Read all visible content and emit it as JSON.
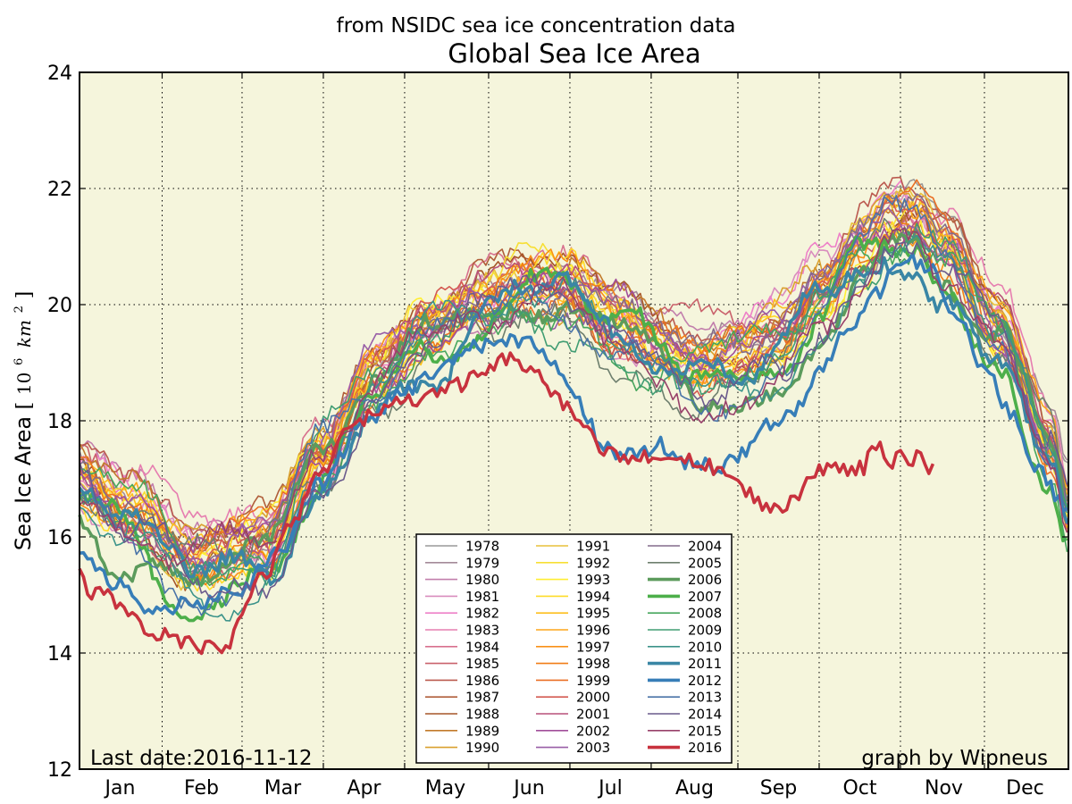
{
  "chart_data": {
    "type": "line",
    "subtitle": "from NSIDC sea ice concentration data",
    "title": "Global Sea Ice Area",
    "ylabel": "Sea Ice Area",
    "ylabel_unit_base": "10",
    "ylabel_unit_exp": "6",
    "ylabel_unit_var": "km",
    "ylabel_unit_var_exp": "2",
    "ylim": [
      12,
      24
    ],
    "yticks": [
      12,
      14,
      16,
      18,
      20,
      22,
      24
    ],
    "xlim": [
      1,
      366
    ],
    "x_unit": "day of year",
    "xtick_days": [
      31.5,
      61,
      91,
      121,
      152,
      182,
      212,
      244,
      274,
      304,
      335
    ],
    "month_labels": [
      "Jan",
      "Feb",
      "Mar",
      "Apr",
      "May",
      "Jun",
      "Jul",
      "Aug",
      "Sep",
      "Oct",
      "Nov",
      "Dec"
    ],
    "month_label_days": [
      16,
      46,
      76,
      106,
      136,
      167,
      197,
      228,
      259,
      289,
      320,
      350
    ],
    "grid": true,
    "plot_background": "#f5f5dc",
    "legend_position": "lower-center",
    "annotation_left": "Last date:2016-11-12",
    "annotation_right": "graph by Wipneus",
    "series": [
      {
        "name": "1978",
        "color": "#999999",
        "thick": false
      },
      {
        "name": "1979",
        "color": "#a48a99",
        "thick": false
      },
      {
        "name": "1980",
        "color": "#c27fac",
        "thick": false
      },
      {
        "name": "1981",
        "color": "#d98cbe",
        "thick": false
      },
      {
        "name": "1982",
        "color": "#ee80c8",
        "thick": false
      },
      {
        "name": "1983",
        "color": "#e67eb0",
        "thick": false
      },
      {
        "name": "1984",
        "color": "#d8708e",
        "thick": false
      },
      {
        "name": "1985",
        "color": "#c9616b",
        "thick": false
      },
      {
        "name": "1986",
        "color": "#bb5a4f",
        "thick": false
      },
      {
        "name": "1987",
        "color": "#b05e3a",
        "thick": false
      },
      {
        "name": "1988",
        "color": "#a65628",
        "thick": false
      },
      {
        "name": "1989",
        "color": "#c27a2b",
        "thick": false
      },
      {
        "name": "1990",
        "color": "#d9a02e",
        "thick": false
      },
      {
        "name": "1991",
        "color": "#e9c03a",
        "thick": false
      },
      {
        "name": "1992",
        "color": "#f7df34",
        "thick": false
      },
      {
        "name": "1993",
        "color": "#ffee33",
        "thick": false
      },
      {
        "name": "1994",
        "color": "#fedb29",
        "thick": false
      },
      {
        "name": "1995",
        "color": "#fdbf1f",
        "thick": false
      },
      {
        "name": "1996",
        "color": "#fda61a",
        "thick": false
      },
      {
        "name": "1997",
        "color": "#f99117",
        "thick": false
      },
      {
        "name": "1998",
        "color": "#f17d16",
        "thick": false
      },
      {
        "name": "1999",
        "color": "#ea6f25",
        "thick": false
      },
      {
        "name": "2000",
        "color": "#d45a52",
        "thick": false
      },
      {
        "name": "2001",
        "color": "#b9517a",
        "thick": false
      },
      {
        "name": "2002",
        "color": "#a14e9a",
        "thick": false
      },
      {
        "name": "2003",
        "color": "#985ea7",
        "thick": false
      },
      {
        "name": "2004",
        "color": "#836c8c",
        "thick": false
      },
      {
        "name": "2005",
        "color": "#6e7f6e",
        "thick": false
      },
      {
        "name": "2006",
        "color": "#5c9b5c",
        "thick": true
      },
      {
        "name": "2007",
        "color": "#4daf4a",
        "thick": true
      },
      {
        "name": "2008",
        "color": "#47a65d",
        "thick": false
      },
      {
        "name": "2009",
        "color": "#419d73",
        "thick": false
      },
      {
        "name": "2010",
        "color": "#3c938a",
        "thick": false
      },
      {
        "name": "2011",
        "color": "#3a86a5",
        "thick": true
      },
      {
        "name": "2012",
        "color": "#377eb8",
        "thick": true
      },
      {
        "name": "2013",
        "color": "#4a74a8",
        "thick": false
      },
      {
        "name": "2014",
        "color": "#6a5a8c",
        "thick": false
      },
      {
        "name": "2015",
        "color": "#98416a",
        "thick": false
      },
      {
        "name": "2016",
        "color": "#c8323e",
        "thick": true
      }
    ],
    "mean_curve": {
      "x": [
        1,
        20,
        45,
        70,
        90,
        110,
        130,
        150,
        165,
        180,
        200,
        215,
        230,
        245,
        260,
        275,
        290,
        300,
        310,
        320,
        340,
        360,
        366
      ],
      "y": [
        17.0,
        16.4,
        15.6,
        16.0,
        17.4,
        18.8,
        19.6,
        20.1,
        20.4,
        20.3,
        19.7,
        19.3,
        19.0,
        19.1,
        19.4,
        20.2,
        21.1,
        21.5,
        21.5,
        21.0,
        19.6,
        17.6,
        16.6
      ]
    },
    "series_2016": {
      "x": [
        1,
        5,
        10,
        20,
        30,
        40,
        45,
        55,
        60,
        70,
        80,
        90,
        100,
        110,
        120,
        130,
        140,
        150,
        160,
        170,
        175,
        180,
        185,
        190,
        195,
        200,
        210,
        220,
        230,
        235,
        240,
        245,
        250,
        255,
        260,
        265,
        270,
        275,
        280,
        285,
        290,
        295,
        300,
        305,
        310,
        315,
        317
      ],
      "y": [
        15.4,
        15.0,
        15.1,
        14.6,
        14.3,
        14.2,
        14.1,
        14.1,
        14.7,
        15.4,
        16.3,
        17.1,
        17.8,
        18.1,
        18.3,
        18.4,
        18.6,
        18.9,
        19.05,
        18.8,
        18.5,
        18.3,
        18.0,
        17.7,
        17.5,
        17.4,
        17.4,
        17.3,
        17.3,
        17.2,
        17.0,
        16.9,
        16.7,
        16.5,
        16.5,
        16.6,
        16.9,
        17.2,
        17.2,
        17.1,
        17.2,
        17.6,
        17.3,
        17.4,
        17.35,
        17.2,
        17.3
      ]
    },
    "series_2012": {
      "x": [
        1,
        15,
        30,
        45,
        60,
        75,
        90,
        105,
        120,
        135,
        150,
        165,
        175,
        185,
        195,
        205,
        215,
        225,
        235,
        245,
        255,
        265,
        275,
        285,
        295,
        305,
        315,
        325,
        335,
        345,
        355,
        366
      ],
      "y": [
        15.7,
        15.2,
        14.7,
        14.9,
        15.1,
        15.8,
        16.9,
        17.9,
        18.5,
        18.9,
        19.3,
        19.4,
        19.1,
        18.3,
        17.5,
        17.4,
        17.6,
        17.3,
        17.2,
        17.4,
        17.9,
        18.2,
        18.9,
        19.6,
        20.2,
        20.8,
        20.6,
        19.8,
        18.9,
        18.1,
        17.1,
        16.5
      ]
    }
  }
}
